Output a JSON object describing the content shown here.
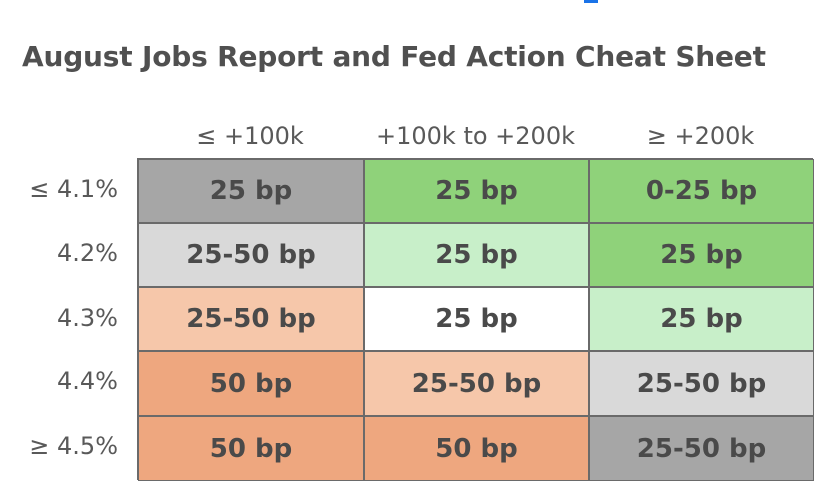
{
  "chart_data": {
    "type": "table",
    "title": "August Jobs Report and Fed Action Cheat Sheet",
    "columns": [
      "≤ +100k",
      "+100k to +200k",
      "≥ +200k"
    ],
    "rows": [
      "≤ 4.1%",
      "4.2%",
      "4.3%",
      "4.4%",
      "≥ 4.5%"
    ],
    "cells": [
      [
        "25 bp",
        "25 bp",
        "0-25 bp"
      ],
      [
        "25-50 bp",
        "25 bp",
        "25 bp"
      ],
      [
        "25-50 bp",
        "25 bp",
        "25 bp"
      ],
      [
        "50 bp",
        "25-50 bp",
        "25-50 bp"
      ],
      [
        "50 bp",
        "50 bp",
        "25-50 bp"
      ]
    ],
    "cell_colors": [
      [
        "#a6a6a6",
        "#8fd27a",
        "#8fd27a"
      ],
      [
        "#d9d9d9",
        "#c8efc9",
        "#8fd27a"
      ],
      [
        "#f6c7aa",
        "#ffffff",
        "#c8efc9"
      ],
      [
        "#eea77f",
        "#f6c7aa",
        "#d9d9d9"
      ],
      [
        "#eea77f",
        "#eea77f",
        "#a6a6a6"
      ]
    ]
  },
  "colors": {
    "title_text": "#505050",
    "header_text": "#595959",
    "cell_text": "#4a4a4a",
    "grid_line": "#6a6a6a",
    "accent_mark": "#1a73e8"
  }
}
